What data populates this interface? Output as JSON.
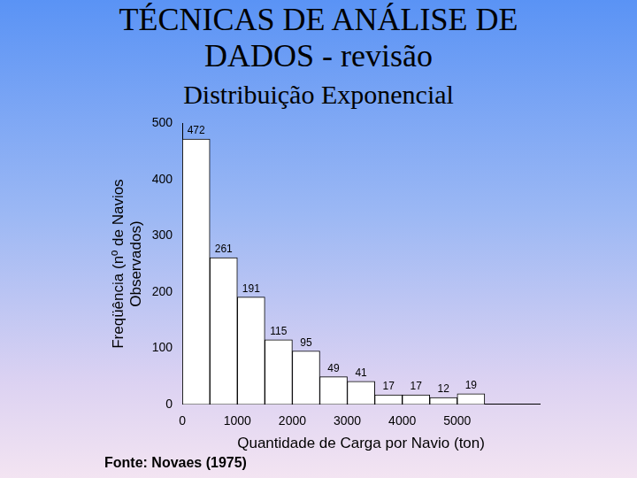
{
  "chart_data": {
    "type": "histogram",
    "title": "TÉCNICAS DE ANÁLISE DE DADOS - revisão",
    "subtitle": "Distribuição Exponencial",
    "x_label": "Quantidade de Carga por Navio (ton)",
    "y_label": [
      "Freqüência (nº de Navios",
      "Observados)"
    ],
    "annotations": [
      "Fonte: Novaes (1975)"
    ],
    "bins": [
      0,
      500,
      1000,
      1500,
      2000,
      2500,
      3000,
      3500,
      4000,
      4500,
      5000,
      5500
    ],
    "values": [
      472,
      261,
      191,
      115,
      95,
      49,
      41,
      17,
      17,
      12,
      19
    ],
    "color": "#ffffff",
    "xlim": [
      0,
      6500
    ],
    "xticks": [
      0,
      1000,
      2000,
      3000,
      4000,
      5000
    ],
    "ylim": [
      0,
      500
    ],
    "yticks": [
      0,
      100,
      200,
      300,
      400,
      500
    ],
    "grid": false,
    "data_labels": true
  }
}
